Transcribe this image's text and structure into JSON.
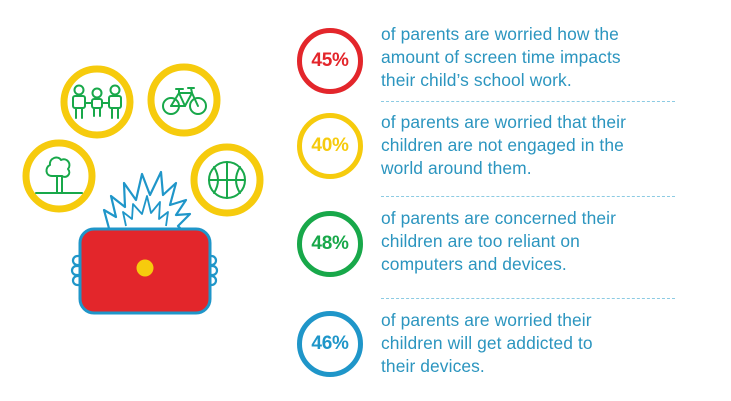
{
  "colors": {
    "red": "#e3262b",
    "yellow": "#f6cb0d",
    "green": "#18a84a",
    "blue": "#1f96c9",
    "text": "#2b95bf",
    "divider": "#8ccbe3"
  },
  "illustration": {
    "icons": [
      "people-holding-hands-icon",
      "bicycle-icon",
      "tree-icon",
      "basketball-icon"
    ],
    "figure": "child-behind-red-tablet"
  },
  "stats": [
    {
      "percent": "45%",
      "color": "#e3262b",
      "lines": [
        "of parents are worried how the",
        "amount of screen time impacts",
        "their child’s school work."
      ]
    },
    {
      "percent": "40%",
      "color": "#f6cb0d",
      "lines": [
        "of parents are worried that their",
        "children are not engaged in the",
        "world around them."
      ]
    },
    {
      "percent": "48%",
      "color": "#18a84a",
      "lines": [
        "of parents are concerned their",
        "children are too reliant on",
        "computers and devices."
      ]
    },
    {
      "percent": "46%",
      "color": "#1f96c9",
      "lines": [
        "of parents are worried their",
        "children will get addicted to",
        "their devices."
      ]
    }
  ]
}
